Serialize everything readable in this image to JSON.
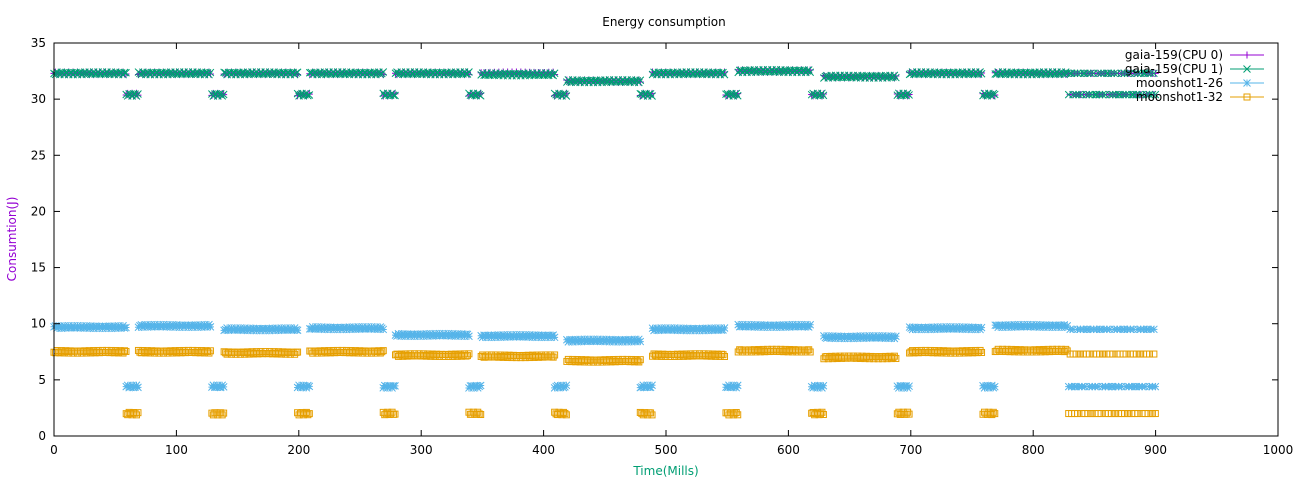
{
  "chart_data": {
    "type": "scatter",
    "title": "Energy consumption",
    "xlabel": "Time(Mills)",
    "ylabel": "Consumtion(J)",
    "xlim": [
      0,
      1000
    ],
    "ylim": [
      0,
      35
    ],
    "xticks": [
      0,
      100,
      200,
      300,
      400,
      500,
      600,
      700,
      800,
      900,
      1000
    ],
    "yticks": [
      0,
      5,
      10,
      15,
      20,
      25,
      30,
      35
    ],
    "grid": false,
    "legend_position": "top-right",
    "colors": {
      "xlabel": "#009e73",
      "ylabel": "#9400d3"
    },
    "series": [
      {
        "name": "gaia-159(CPU 0)",
        "color": "#9400d3",
        "marker": "plus",
        "segments": [
          {
            "x": [
              0,
              59
            ],
            "y": 32.3
          },
          {
            "x": [
              59,
              69
            ],
            "y": 30.4
          },
          {
            "x": [
              69,
              129
            ],
            "y": 32.3
          },
          {
            "x": [
              129,
              139
            ],
            "y": 30.4
          },
          {
            "x": [
              139,
              199
            ],
            "y": 32.3
          },
          {
            "x": [
              199,
              209
            ],
            "y": 30.4
          },
          {
            "x": [
              209,
              269
            ],
            "y": 32.3
          },
          {
            "x": [
              269,
              279
            ],
            "y": 30.4
          },
          {
            "x": [
              279,
              339
            ],
            "y": 32.3
          },
          {
            "x": [
              339,
              349
            ],
            "y": 30.4
          },
          {
            "x": [
              349,
              409
            ],
            "y": 32.3
          },
          {
            "x": [
              409,
              419
            ],
            "y": 30.4
          },
          {
            "x": [
              419,
              479
            ],
            "y": 31.6
          },
          {
            "x": [
              479,
              489
            ],
            "y": 30.4
          },
          {
            "x": [
              489,
              549
            ],
            "y": 32.3
          },
          {
            "x": [
              549,
              559
            ],
            "y": 30.4
          },
          {
            "x": [
              559,
              619
            ],
            "y": 32.5
          },
          {
            "x": [
              619,
              629
            ],
            "y": 30.4
          },
          {
            "x": [
              629,
              689
            ],
            "y": 32.0
          },
          {
            "x": [
              689,
              699
            ],
            "y": 30.4
          },
          {
            "x": [
              699,
              759
            ],
            "y": 32.3
          },
          {
            "x": [
              759,
              769
            ],
            "y": 30.4
          },
          {
            "x": [
              769,
              829
            ],
            "y": 32.3
          },
          {
            "x": [
              829,
              900
            ],
            "y": 30.4
          }
        ]
      },
      {
        "name": "gaia-159(CPU 1)",
        "color": "#009e73",
        "marker": "cross",
        "segments": [
          {
            "x": [
              0,
              59
            ],
            "y": 32.3
          },
          {
            "x": [
              59,
              69
            ],
            "y": 30.4
          },
          {
            "x": [
              69,
              129
            ],
            "y": 32.3
          },
          {
            "x": [
              129,
              139
            ],
            "y": 30.4
          },
          {
            "x": [
              139,
              199
            ],
            "y": 32.3
          },
          {
            "x": [
              199,
              209
            ],
            "y": 30.4
          },
          {
            "x": [
              209,
              269
            ],
            "y": 32.3
          },
          {
            "x": [
              269,
              279
            ],
            "y": 30.4
          },
          {
            "x": [
              279,
              339
            ],
            "y": 32.3
          },
          {
            "x": [
              339,
              349
            ],
            "y": 30.4
          },
          {
            "x": [
              349,
              409
            ],
            "y": 32.2
          },
          {
            "x": [
              409,
              419
            ],
            "y": 30.4
          },
          {
            "x": [
              419,
              479
            ],
            "y": 31.6
          },
          {
            "x": [
              479,
              489
            ],
            "y": 30.4
          },
          {
            "x": [
              489,
              549
            ],
            "y": 32.3
          },
          {
            "x": [
              549,
              559
            ],
            "y": 30.4
          },
          {
            "x": [
              559,
              619
            ],
            "y": 32.5
          },
          {
            "x": [
              619,
              629
            ],
            "y": 30.4
          },
          {
            "x": [
              629,
              689
            ],
            "y": 32.0
          },
          {
            "x": [
              689,
              699
            ],
            "y": 30.4
          },
          {
            "x": [
              699,
              759
            ],
            "y": 32.3
          },
          {
            "x": [
              759,
              769
            ],
            "y": 30.4
          },
          {
            "x": [
              769,
              829
            ],
            "y": 32.3
          },
          {
            "x": [
              829,
              900
            ],
            "y": 31.2
          }
        ]
      },
      {
        "name": "moonshot1-26",
        "color": "#56b4e9",
        "marker": "star",
        "segments": [
          {
            "x": [
              0,
              59
            ],
            "y": 9.7
          },
          {
            "x": [
              59,
              69
            ],
            "y": 4.4
          },
          {
            "x": [
              69,
              129
            ],
            "y": 9.8
          },
          {
            "x": [
              129,
              139
            ],
            "y": 4.4
          },
          {
            "x": [
              139,
              199
            ],
            "y": 9.5
          },
          {
            "x": [
              199,
              209
            ],
            "y": 4.4
          },
          {
            "x": [
              209,
              269
            ],
            "y": 9.6
          },
          {
            "x": [
              269,
              279
            ],
            "y": 4.4
          },
          {
            "x": [
              279,
              339
            ],
            "y": 9.0
          },
          {
            "x": [
              339,
              349
            ],
            "y": 4.4
          },
          {
            "x": [
              349,
              409
            ],
            "y": 8.9
          },
          {
            "x": [
              409,
              419
            ],
            "y": 4.4
          },
          {
            "x": [
              419,
              479
            ],
            "y": 8.5
          },
          {
            "x": [
              479,
              489
            ],
            "y": 4.4
          },
          {
            "x": [
              489,
              549
            ],
            "y": 9.5
          },
          {
            "x": [
              549,
              559
            ],
            "y": 4.4
          },
          {
            "x": [
              559,
              619
            ],
            "y": 9.8
          },
          {
            "x": [
              619,
              629
            ],
            "y": 4.4
          },
          {
            "x": [
              629,
              689
            ],
            "y": 8.8
          },
          {
            "x": [
              689,
              699
            ],
            "y": 4.4
          },
          {
            "x": [
              699,
              759
            ],
            "y": 9.6
          },
          {
            "x": [
              759,
              769
            ],
            "y": 4.4
          },
          {
            "x": [
              769,
              829
            ],
            "y": 9.8
          },
          {
            "x": [
              829,
              900
            ],
            "y": 6.5
          }
        ]
      },
      {
        "name": "moonshot1-32",
        "color": "#e69f00",
        "marker": "square",
        "segments": [
          {
            "x": [
              0,
              59
            ],
            "y": 7.5
          },
          {
            "x": [
              59,
              69
            ],
            "y": 2.0
          },
          {
            "x": [
              69,
              129
            ],
            "y": 7.5
          },
          {
            "x": [
              129,
              139
            ],
            "y": 2.0
          },
          {
            "x": [
              139,
              199
            ],
            "y": 7.4
          },
          {
            "x": [
              199,
              209
            ],
            "y": 2.0
          },
          {
            "x": [
              209,
              269
            ],
            "y": 7.5
          },
          {
            "x": [
              269,
              279
            ],
            "y": 2.0
          },
          {
            "x": [
              279,
              339
            ],
            "y": 7.2
          },
          {
            "x": [
              339,
              349
            ],
            "y": 2.0
          },
          {
            "x": [
              349,
              409
            ],
            "y": 7.1
          },
          {
            "x": [
              409,
              419
            ],
            "y": 2.0
          },
          {
            "x": [
              419,
              479
            ],
            "y": 6.7
          },
          {
            "x": [
              479,
              489
            ],
            "y": 2.0
          },
          {
            "x": [
              489,
              549
            ],
            "y": 7.2
          },
          {
            "x": [
              549,
              559
            ],
            "y": 2.0
          },
          {
            "x": [
              559,
              619
            ],
            "y": 7.6
          },
          {
            "x": [
              619,
              629
            ],
            "y": 2.0
          },
          {
            "x": [
              629,
              689
            ],
            "y": 7.0
          },
          {
            "x": [
              689,
              699
            ],
            "y": 2.0
          },
          {
            "x": [
              699,
              759
            ],
            "y": 7.5
          },
          {
            "x": [
              759,
              769
            ],
            "y": 2.0
          },
          {
            "x": [
              769,
              829
            ],
            "y": 7.6
          },
          {
            "x": [
              829,
              900
            ],
            "y": 4.5
          }
        ]
      }
    ]
  }
}
